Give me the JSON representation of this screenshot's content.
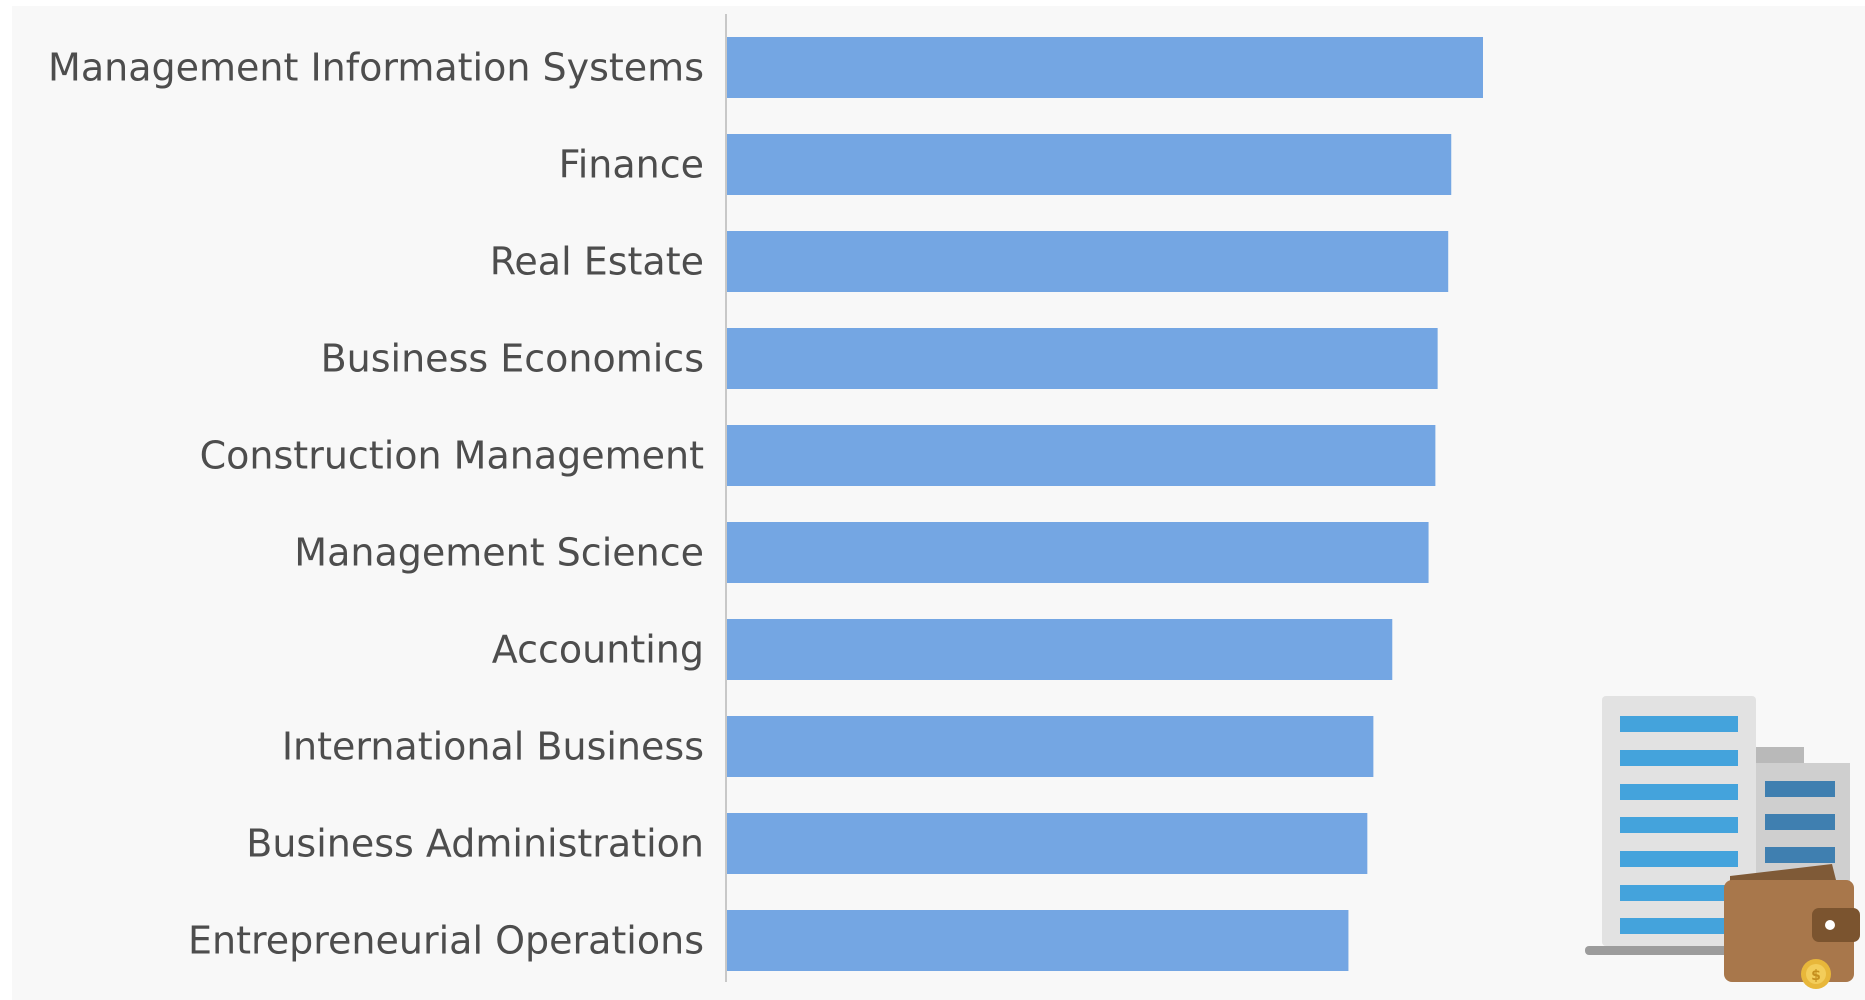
{
  "chart_data": {
    "type": "bar",
    "orientation": "horizontal",
    "categories": [
      "Management Information Systems",
      "Finance",
      "Real Estate",
      "Business Economics",
      "Construction Management",
      "Management Science",
      "Accounting",
      "International Business",
      "Business Administration",
      "Entrepreneurial Operations"
    ],
    "values": [
      100,
      95.8,
      95.4,
      94.0,
      93.7,
      92.8,
      88.0,
      85.5,
      84.7,
      82.2
    ],
    "xlim": [
      0,
      100
    ],
    "grid": false,
    "legend": "none",
    "colors": {
      "bar": "#74a6e3",
      "axis": "#c8c8c8",
      "label": "#4d4d4d",
      "panel": "#f8f8f8"
    }
  },
  "decoration": {
    "icons": [
      "office-building-icon",
      "wallet-icon",
      "coin-icon"
    ]
  }
}
